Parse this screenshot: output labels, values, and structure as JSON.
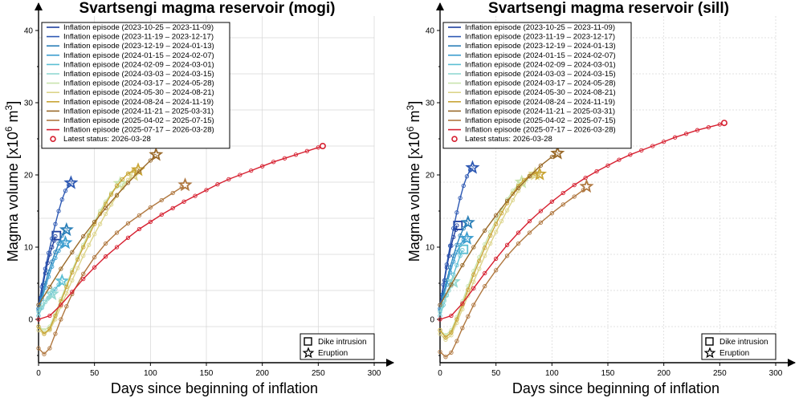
{
  "chart_data": [
    {
      "type": "line",
      "title": "Svartsengi magma reservoir (mogi)",
      "xlabel": "Days since beginning of inflation",
      "ylabel_prefix": "Magma volume [x10",
      "ylabel_exp": "6",
      "ylabel_unit": " m",
      "ylabel_exp2": "3",
      "ylabel_suffix": "]",
      "xlim": [
        0,
        300
      ],
      "ylim": [
        -6,
        42
      ],
      "xticks": [
        0,
        50,
        100,
        150,
        200,
        250,
        300
      ],
      "yticks": [
        0,
        10,
        20,
        30,
        40
      ],
      "grid": true,
      "legend_position": "top-left",
      "series": [
        {
          "name": "Inflation episode (2023-10-25 – 2023-11-09)",
          "color": "#1f3f9e",
          "x": [
            0,
            2,
            4,
            6,
            8,
            10,
            12,
            14,
            15
          ],
          "y": [
            1.5,
            3.0,
            4.8,
            6.4,
            7.8,
            9.0,
            10.0,
            10.9,
            11.5
          ],
          "event": {
            "type": "dike",
            "x": 16,
            "y": 11.6
          }
        },
        {
          "name": "Inflation episode (2023-11-19 – 2023-12-17)",
          "color": "#2e59b3",
          "x": [
            0,
            3,
            6,
            9,
            12,
            15,
            18,
            21,
            24,
            27,
            28
          ],
          "y": [
            2.0,
            4.5,
            7.0,
            9.2,
            11.2,
            13.2,
            15.0,
            16.6,
            17.8,
            18.6,
            18.9
          ],
          "event": {
            "type": "eruption",
            "x": 29,
            "y": 18.9
          }
        },
        {
          "name": "Inflation episode (2023-12-19 – 2024-01-13)",
          "color": "#2a7fb8",
          "x": [
            0,
            3,
            6,
            9,
            12,
            15,
            18,
            21,
            24
          ],
          "y": [
            1.5,
            3.3,
            5.0,
            6.6,
            8.0,
            9.3,
            10.5,
            11.6,
            12.4
          ],
          "event": {
            "type": "eruption",
            "x": 25,
            "y": 12.4
          }
        },
        {
          "name": "Inflation episode (2024-01-15 – 2024-02-07)",
          "color": "#3d9ecf",
          "x": [
            0,
            3,
            6,
            9,
            12,
            15,
            18,
            21,
            23
          ],
          "y": [
            1.2,
            2.8,
            4.4,
            5.9,
            7.3,
            8.5,
            9.5,
            10.3,
            10.7
          ],
          "event": {
            "type": "eruption",
            "x": 24,
            "y": 10.6
          }
        },
        {
          "name": "Inflation episode (2024-02-09 – 2024-03-01)",
          "color": "#5cbfd3",
          "x": [
            0,
            3,
            6,
            9,
            12,
            15,
            18,
            20
          ],
          "y": [
            0.5,
            1.6,
            2.4,
            3.0,
            3.6,
            4.2,
            4.8,
            5.2
          ],
          "event": {
            "type": "eruption",
            "x": 21,
            "y": 5.3
          }
        },
        {
          "name": "Inflation episode (2024-03-03 – 2024-03-15)",
          "color": "#93d8d2",
          "x": [
            0,
            2,
            4,
            6,
            8,
            10,
            12
          ],
          "y": [
            1.0,
            1.5,
            2.0,
            2.4,
            2.8,
            3.1,
            3.4
          ],
          "event": {
            "type": "eruption",
            "x": 12,
            "y": 3.5
          }
        },
        {
          "name": "Inflation episode (2024-03-17 – 2024-05-28)",
          "color": "#c8e3ac",
          "x": [
            0,
            5,
            10,
            15,
            20,
            25,
            30,
            35,
            40,
            45,
            50,
            55,
            60,
            65,
            70,
            72
          ],
          "y": [
            -1.0,
            -1.5,
            -1.0,
            0.8,
            2.8,
            4.8,
            6.8,
            8.6,
            10.3,
            12.0,
            13.5,
            15.0,
            16.3,
            17.5,
            18.5,
            18.8
          ],
          "event": {
            "type": "eruption",
            "x": 73,
            "y": 18.8
          }
        },
        {
          "name": "Inflation episode (2024-05-30 – 2024-08-21)",
          "color": "#dcd48a",
          "x": [
            0,
            5,
            10,
            15,
            20,
            25,
            30,
            35,
            40,
            45,
            50,
            55,
            60,
            65,
            70,
            75,
            80,
            83
          ],
          "y": [
            -1.5,
            -2.0,
            -1.5,
            0.0,
            1.8,
            3.6,
            5.4,
            7.1,
            8.8,
            10.3,
            11.8,
            13.2,
            14.6,
            15.9,
            17.1,
            18.2,
            19.3,
            19.8
          ],
          "event": {
            "type": "eruption",
            "x": 85,
            "y": 20.0
          }
        },
        {
          "name": "Inflation episode (2024-08-24 – 2024-11-19)",
          "color": "#c9a536",
          "x": [
            0,
            5,
            10,
            15,
            20,
            25,
            30,
            35,
            40,
            45,
            50,
            55,
            60,
            65,
            70,
            75,
            80,
            85,
            88
          ],
          "y": [
            -1.0,
            -2.0,
            -1.3,
            0.5,
            2.5,
            4.5,
            6.5,
            8.3,
            10.0,
            11.6,
            13.2,
            14.6,
            16.0,
            17.3,
            18.5,
            19.4,
            20.2,
            20.6,
            20.7
          ],
          "event": {
            "type": "eruption",
            "x": 89,
            "y": 20.7
          }
        },
        {
          "name": "Inflation episode (2024-11-21 – 2025-03-31)",
          "color": "#9a6a2a",
          "x": [
            0,
            10,
            20,
            30,
            40,
            50,
            60,
            70,
            80,
            90,
            100,
            104
          ],
          "y": [
            2.0,
            4.5,
            7.0,
            9.3,
            11.5,
            13.5,
            15.4,
            17.2,
            18.9,
            20.5,
            22.0,
            22.6
          ],
          "event": {
            "type": "eruption",
            "x": 105,
            "y": 22.8
          }
        },
        {
          "name": "Inflation episode (2025-04-02 – 2025-07-15)",
          "color": "#b07840",
          "x": [
            0,
            5,
            10,
            15,
            20,
            25,
            30,
            40,
            50,
            60,
            70,
            80,
            90,
            100,
            110,
            120,
            128
          ],
          "y": [
            -4.0,
            -4.8,
            -4.0,
            -2.0,
            0.0,
            1.8,
            3.5,
            6.3,
            8.6,
            10.5,
            12.0,
            13.3,
            14.4,
            15.5,
            16.5,
            17.5,
            18.3
          ],
          "event": {
            "type": "eruption",
            "x": 131,
            "y": 18.6
          }
        },
        {
          "name": "Inflation episode (2025-07-17 – 2026-03-28)",
          "color": "#d62030",
          "x": [
            0,
            10,
            20,
            30,
            40,
            50,
            60,
            70,
            80,
            90,
            100,
            110,
            120,
            130,
            140,
            150,
            160,
            170,
            180,
            190,
            200,
            210,
            220,
            230,
            240,
            250,
            254
          ],
          "y": [
            0.0,
            0.5,
            2.0,
            3.8,
            5.6,
            7.2,
            8.7,
            10.0,
            11.3,
            12.5,
            13.5,
            14.5,
            15.4,
            16.3,
            17.1,
            17.9,
            18.7,
            19.4,
            20.0,
            20.6,
            21.2,
            21.8,
            22.3,
            22.8,
            23.3,
            23.8,
            24.0
          ],
          "event": {
            "type": "latest",
            "x": 254,
            "y": 24.0
          }
        }
      ],
      "latest_label": "Latest status: 2026-03-28",
      "marker_legend": {
        "dike": "Dike intrusion",
        "eruption": "Eruption"
      }
    },
    {
      "type": "line",
      "title": "Svartsengi magma reservoir (sill)",
      "xlabel": "Days since beginning of inflation",
      "ylabel_prefix": "Magma volume [x10",
      "ylabel_exp": "6",
      "ylabel_unit": " m",
      "ylabel_exp2": "3",
      "ylabel_suffix": "]",
      "xlim": [
        0,
        300
      ],
      "ylim": [
        -6,
        42
      ],
      "xticks": [
        0,
        50,
        100,
        150,
        200,
        250,
        300
      ],
      "yticks": [
        0,
        10,
        20,
        30,
        40
      ],
      "grid": true,
      "legend_position": "top-left",
      "series": [
        {
          "name": "Inflation episode (2023-10-25 – 2023-11-09)",
          "color": "#1f3f9e",
          "x": [
            0,
            2,
            4,
            6,
            8,
            10,
            12,
            14,
            15
          ],
          "y": [
            1.5,
            3.4,
            5.4,
            7.2,
            8.8,
            10.2,
            11.4,
            12.4,
            13.0
          ],
          "event": {
            "type": "dike",
            "x": 16,
            "y": 13.0
          }
        },
        {
          "name": "Inflation episode (2023-11-19 – 2023-12-17)",
          "color": "#2e59b3",
          "x": [
            0,
            3,
            6,
            9,
            12,
            15,
            18,
            21,
            24,
            27,
            28
          ],
          "y": [
            2.0,
            4.8,
            7.6,
            10.2,
            12.6,
            14.8,
            16.8,
            18.5,
            19.8,
            20.7,
            21.0
          ],
          "event": {
            "type": "eruption",
            "x": 29,
            "y": 21.0
          }
        },
        {
          "name": "Inflation episode (2023-12-19 – 2024-01-13)",
          "color": "#2a7fb8",
          "x": [
            0,
            3,
            6,
            9,
            12,
            15,
            18,
            21,
            24
          ],
          "y": [
            1.5,
            3.5,
            5.4,
            7.2,
            8.8,
            10.3,
            11.6,
            12.6,
            13.3
          ],
          "event": {
            "type": "eruption",
            "x": 25,
            "y": 13.4
          }
        },
        {
          "name": "Inflation episode (2024-01-15 – 2024-02-07)",
          "color": "#3d9ecf",
          "x": [
            0,
            3,
            6,
            9,
            12,
            15,
            18,
            21,
            23
          ],
          "y": [
            1.2,
            3.0,
            4.8,
            6.5,
            8.0,
            9.3,
            10.3,
            11.0,
            11.3
          ],
          "event": {
            "type": "eruption",
            "x": 24,
            "y": 11.2
          }
        },
        {
          "name": "Inflation episode (2024-02-09 – 2024-03-01)",
          "color": "#5cbfd3",
          "x": [
            0,
            3,
            6,
            9,
            12,
            15,
            18,
            20
          ],
          "y": [
            0.5,
            2.0,
            3.4,
            4.8,
            6.2,
            7.5,
            8.8,
            9.6
          ],
          "event": {
            "type": "dike",
            "x": 21,
            "y": 9.7
          }
        },
        {
          "name": "Inflation episode (2024-03-03 – 2024-03-15)",
          "color": "#93d8d2",
          "x": [
            0,
            2,
            4,
            6,
            8,
            10,
            12
          ],
          "y": [
            1.0,
            1.8,
            2.6,
            3.3,
            4.0,
            4.6,
            5.1
          ],
          "event": {
            "type": "eruption",
            "x": 12,
            "y": 5.2
          }
        },
        {
          "name": "Inflation episode (2024-03-17 – 2024-05-28)",
          "color": "#c8e3ac",
          "x": [
            0,
            5,
            10,
            15,
            20,
            25,
            30,
            35,
            40,
            45,
            50,
            55,
            60,
            65,
            70,
            72
          ],
          "y": [
            -1.5,
            -2.2,
            -1.5,
            0.3,
            2.5,
            4.6,
            6.7,
            8.6,
            10.4,
            12.1,
            13.7,
            15.2,
            16.6,
            17.8,
            18.7,
            19.0
          ],
          "event": {
            "type": "eruption",
            "x": 73,
            "y": 19.0
          }
        },
        {
          "name": "Inflation episode (2024-05-30 – 2024-08-21)",
          "color": "#dcd48a",
          "x": [
            0,
            5,
            10,
            15,
            20,
            25,
            30,
            35,
            40,
            45,
            50,
            55,
            60,
            65,
            70,
            75,
            80,
            83
          ],
          "y": [
            -2.0,
            -2.8,
            -2.2,
            -0.5,
            1.4,
            3.3,
            5.2,
            7.0,
            8.8,
            10.5,
            12.1,
            13.6,
            15.1,
            16.5,
            17.8,
            18.9,
            19.8,
            20.1
          ],
          "event": {
            "type": "eruption",
            "x": 85,
            "y": 20.1
          }
        },
        {
          "name": "Inflation episode (2024-08-24 – 2024-11-19)",
          "color": "#c9a536",
          "x": [
            0,
            5,
            10,
            15,
            20,
            25,
            30,
            35,
            40,
            45,
            50,
            55,
            60,
            65,
            70,
            75,
            80,
            85,
            88
          ],
          "y": [
            -1.5,
            -2.5,
            -1.8,
            0.0,
            2.0,
            4.1,
            6.2,
            8.1,
            9.9,
            11.6,
            13.2,
            14.7,
            16.1,
            17.4,
            18.5,
            19.3,
            19.9,
            20.2,
            20.2
          ],
          "event": {
            "type": "eruption",
            "x": 89,
            "y": 20.1
          }
        },
        {
          "name": "Inflation episode (2024-11-21 – 2025-03-31)",
          "color": "#9a6a2a",
          "x": [
            0,
            10,
            20,
            30,
            40,
            50,
            60,
            70,
            80,
            90,
            100,
            104
          ],
          "y": [
            2.0,
            4.8,
            7.5,
            10.0,
            12.3,
            14.4,
            16.4,
            18.2,
            19.8,
            21.3,
            22.5,
            22.9
          ],
          "event": {
            "type": "eruption",
            "x": 105,
            "y": 23.0
          }
        },
        {
          "name": "Inflation episode (2025-04-02 – 2025-07-15)",
          "color": "#b07840",
          "x": [
            0,
            5,
            10,
            15,
            20,
            25,
            30,
            40,
            50,
            60,
            70,
            80,
            90,
            100,
            110,
            120,
            128
          ],
          "y": [
            -4.5,
            -5.2,
            -4.6,
            -3.0,
            -1.2,
            0.4,
            2.0,
            4.6,
            6.8,
            8.8,
            10.5,
            12.0,
            13.4,
            14.7,
            15.9,
            17.0,
            17.9
          ],
          "event": {
            "type": "eruption",
            "x": 131,
            "y": 18.4
          }
        },
        {
          "name": "Inflation episode (2025-07-17 – 2026-03-28)",
          "color": "#d62030",
          "x": [
            0,
            10,
            20,
            30,
            40,
            50,
            60,
            70,
            80,
            90,
            100,
            110,
            120,
            130,
            140,
            150,
            160,
            170,
            180,
            190,
            200,
            210,
            220,
            230,
            240,
            250,
            254
          ],
          "y": [
            0.0,
            0.5,
            2.2,
            4.3,
            6.4,
            8.4,
            10.3,
            12.0,
            13.6,
            15.0,
            16.3,
            17.5,
            18.6,
            19.6,
            20.5,
            21.3,
            22.1,
            22.8,
            23.4,
            24.0,
            24.6,
            25.2,
            25.7,
            26.2,
            26.6,
            27.0,
            27.2
          ],
          "event": {
            "type": "latest",
            "x": 254,
            "y": 27.2
          }
        }
      ],
      "latest_label": "Latest status: 2026-03-28",
      "marker_legend": {
        "dike": "Dike intrusion",
        "eruption": "Eruption"
      }
    }
  ]
}
